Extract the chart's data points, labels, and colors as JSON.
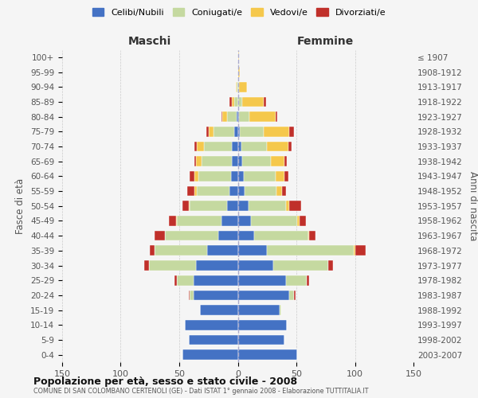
{
  "age_groups": [
    "0-4",
    "5-9",
    "10-14",
    "15-19",
    "20-24",
    "25-29",
    "30-34",
    "35-39",
    "40-44",
    "45-49",
    "50-54",
    "55-59",
    "60-64",
    "65-69",
    "70-74",
    "75-79",
    "80-84",
    "85-89",
    "90-94",
    "95-99",
    "100+"
  ],
  "birth_years": [
    "2003-2007",
    "1998-2002",
    "1993-1997",
    "1988-1992",
    "1983-1987",
    "1978-1982",
    "1973-1977",
    "1968-1972",
    "1963-1967",
    "1958-1962",
    "1953-1957",
    "1948-1952",
    "1943-1947",
    "1938-1942",
    "1933-1937",
    "1928-1932",
    "1923-1927",
    "1918-1922",
    "1913-1917",
    "1908-1912",
    "≤ 1907"
  ],
  "maschi": {
    "celibi": [
      47,
      42,
      45,
      32,
      38,
      38,
      36,
      26,
      17,
      14,
      9,
      7,
      6,
      5,
      5,
      3,
      1,
      0,
      0,
      0,
      0
    ],
    "coniugati": [
      0,
      0,
      0,
      0,
      3,
      14,
      40,
      45,
      45,
      38,
      32,
      28,
      28,
      26,
      24,
      18,
      8,
      3,
      1,
      0,
      0
    ],
    "vedovi": [
      0,
      0,
      0,
      0,
      0,
      0,
      0,
      0,
      0,
      1,
      1,
      2,
      3,
      5,
      6,
      4,
      4,
      2,
      1,
      0,
      0
    ],
    "divorziati": [
      0,
      0,
      0,
      0,
      1,
      2,
      4,
      4,
      9,
      6,
      5,
      6,
      4,
      1,
      2,
      2,
      1,
      2,
      0,
      0,
      0
    ]
  },
  "femmine": {
    "nubili": [
      51,
      40,
      42,
      36,
      44,
      41,
      30,
      25,
      14,
      11,
      9,
      6,
      5,
      4,
      3,
      2,
      1,
      0,
      0,
      0,
      0
    ],
    "coniugate": [
      0,
      0,
      0,
      1,
      4,
      18,
      47,
      74,
      46,
      40,
      32,
      27,
      27,
      24,
      22,
      20,
      9,
      4,
      1,
      0,
      0
    ],
    "vedove": [
      0,
      0,
      0,
      0,
      0,
      0,
      0,
      1,
      1,
      2,
      3,
      5,
      8,
      12,
      18,
      22,
      22,
      18,
      7,
      2,
      1
    ],
    "divorziate": [
      0,
      0,
      0,
      0,
      1,
      2,
      4,
      9,
      5,
      5,
      10,
      3,
      3,
      2,
      3,
      4,
      2,
      2,
      0,
      0,
      0
    ]
  },
  "color_celibi": "#4472c4",
  "color_coniugati": "#c5d9a0",
  "color_vedovi": "#f5c84c",
  "color_divorziati": "#c0302a",
  "xlim": 150,
  "title": "Popolazione per età, sesso e stato civile - 2008",
  "subtitle": "COMUNE DI SAN COLOMBANO CERTENOLI (GE) - Dati ISTAT 1° gennaio 2008 - Elaborazione TUTTITALIA.IT",
  "ylabel_left": "Fasce di età",
  "ylabel_right": "Anni di nascita",
  "xlabel_maschi": "Maschi",
  "xlabel_femmine": "Femmine",
  "legend_labels": [
    "Celibi/Nubili",
    "Coniugati/e",
    "Vedovi/e",
    "Divorziati/e"
  ],
  "bg_color": "#f5f5f5",
  "grid_color": "#cccccc"
}
